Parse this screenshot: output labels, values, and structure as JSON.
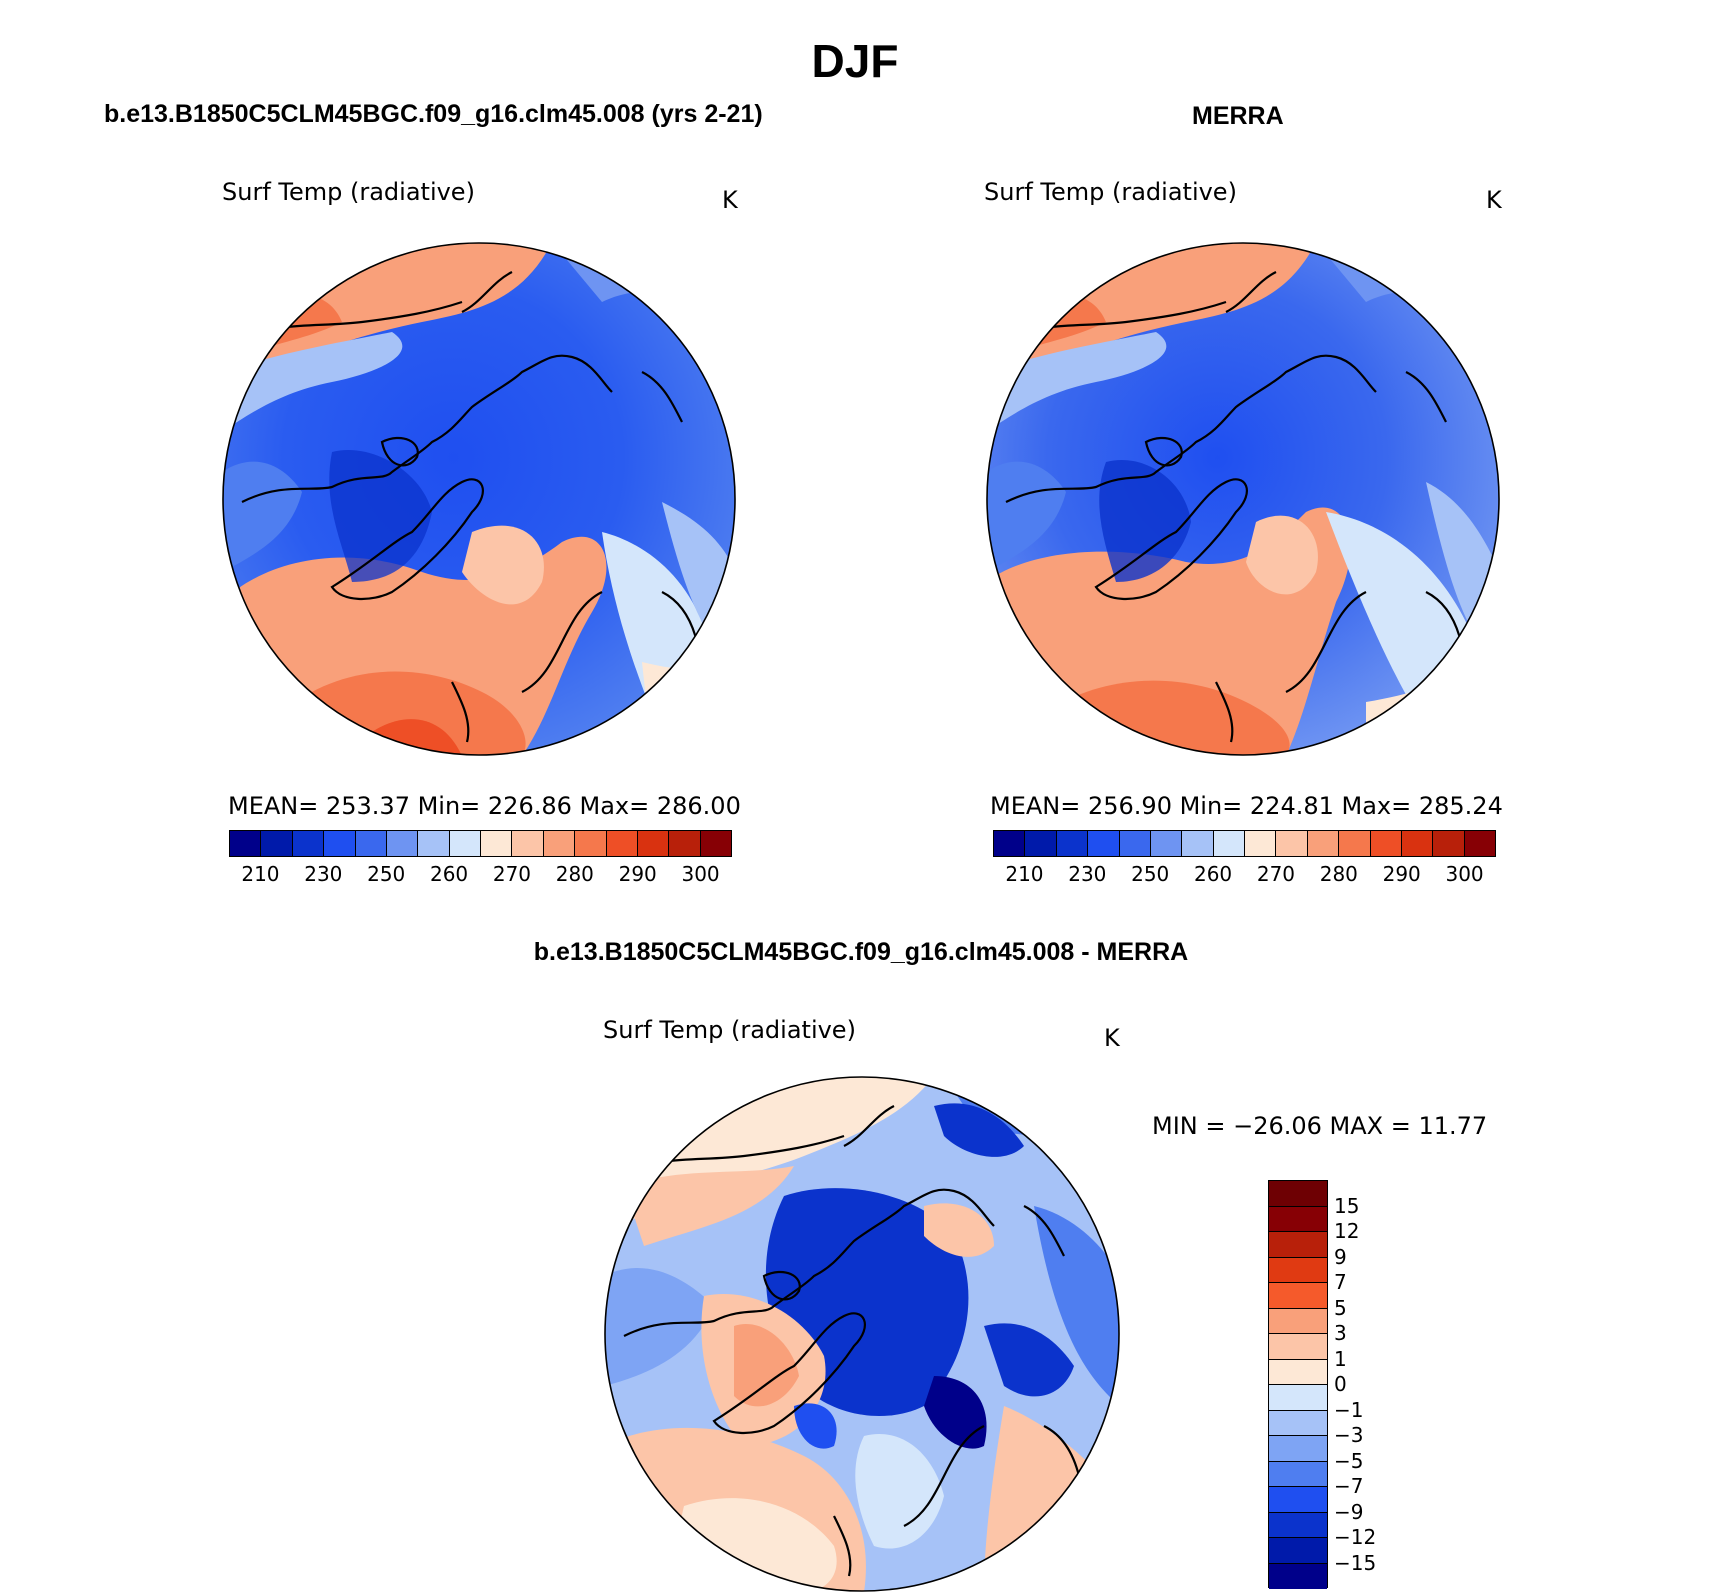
{
  "figure": {
    "season": "DJF",
    "panels": [
      {
        "id": "model",
        "title": "b.e13.B1850C5CLM45BGC.f09_g16.clm45.008 (yrs 2-21)",
        "variable": "Surf Temp (radiative)",
        "units": "K",
        "stats": "MEAN=  253.37    Min=  226.86    Max=  286.00",
        "mean": 253.37,
        "min": 226.86,
        "max": 286.0
      },
      {
        "id": "obs",
        "title": "MERRA",
        "variable": "Surf Temp (radiative)",
        "units": "K",
        "stats": "MEAN=  256.90    Min=  224.81    Max=  285.24",
        "mean": 256.9,
        "min": 224.81,
        "max": 285.24
      },
      {
        "id": "diff",
        "title": "b.e13.B1850C5CLM45BGC.f09_g16.clm45.008 - MERRA",
        "variable": "Surf Temp (radiative)",
        "units": "K",
        "minmax": "MIN =  −26.06  MAX =    11.77",
        "min": -26.06,
        "max": 11.77
      }
    ],
    "abs_colorbar": {
      "tick_labels": [
        "210",
        "230",
        "250",
        "260",
        "270",
        "280",
        "290",
        "300"
      ],
      "colors": [
        "#00008a",
        "#001aaa",
        "#0b33cc",
        "#1f4ff0",
        "#3a68ee",
        "#6e94f2",
        "#a6c2f7",
        "#d4e6fb",
        "#fde8d6",
        "#fcc5a8",
        "#f9a07a",
        "#f5784c",
        "#ee4f26",
        "#d93210",
        "#b8200a",
        "#870005"
      ]
    },
    "diff_colorbar": {
      "tick_labels": [
        "15",
        "12",
        "9",
        "7",
        "5",
        "3",
        "1",
        "0",
        "−1",
        "−3",
        "−5",
        "−7",
        "−9",
        "−12",
        "−15"
      ],
      "colors": [
        "#870005",
        "#b8200a",
        "#e03a12",
        "#f55a2b",
        "#f9a07a",
        "#fcc5a8",
        "#fde8d6",
        "#d4e6fb",
        "#a6c2f7",
        "#7ea4f4",
        "#4f7ef0",
        "#1f4ff0",
        "#0b33cc",
        "#001aaa",
        "#00008a"
      ]
    }
  }
}
